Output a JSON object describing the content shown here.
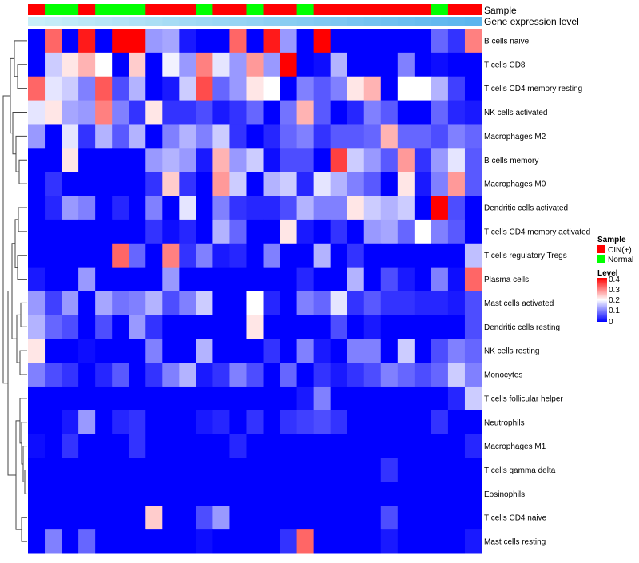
{
  "chart_data": {
    "type": "heatmap",
    "title": "",
    "annotation_labels": {
      "sample": "Sample",
      "expression": "Gene expression level"
    },
    "legend_position": "right",
    "sample_legend": {
      "title": "Sample",
      "entries": [
        {
          "label": "CIN(+)",
          "color": "#FF0000"
        },
        {
          "label": "Normal",
          "color": "#00FF00"
        }
      ]
    },
    "level_legend": {
      "title": "Level",
      "ticks": [
        "0.4",
        "0.3",
        "0.2",
        "0.1",
        "0"
      ],
      "tick_values": [
        0.4,
        0.3,
        0.2,
        0.1,
        0
      ],
      "range": [
        0,
        0.4
      ]
    },
    "color_scale": {
      "low": "#0000FF",
      "mid": "#FFFFFF",
      "high": "#FF0000",
      "midpoint": 0.2
    },
    "expression_bar": {
      "low": "#C8EEF8",
      "high": "#5BB5EE"
    },
    "sample_groups": [
      "CIN(+)",
      "Normal",
      "Normal",
      "CIN(+)",
      "Normal",
      "Normal",
      "Normal",
      "CIN(+)",
      "CIN(+)",
      "CIN(+)",
      "Normal",
      "CIN(+)",
      "CIN(+)",
      "Normal",
      "CIN(+)",
      "CIN(+)",
      "Normal",
      "CIN(+)",
      "CIN(+)",
      "CIN(+)",
      "CIN(+)",
      "CIN(+)",
      "CIN(+)",
      "CIN(+)",
      "Normal",
      "CIN(+)",
      "CIN(+)"
    ],
    "rows": [
      "B cells naive",
      "T cells CD8",
      "T cells CD4 memory resting",
      "NK cells activated",
      "Macrophages M2",
      "B cells memory",
      "Macrophages M0",
      "Dendritic cells activated",
      "T cells CD4 memory activated",
      "T cells regulatory  Tregs",
      "Plasma cells",
      "Mast cells activated",
      "Dendritic cells resting",
      "NK cells resting",
      "Monocytes",
      "T cells follicular helper",
      "Neutrophils",
      "Macrophages M1",
      "T cells gamma delta",
      "Eosinophils",
      "T cells CD4 naive",
      "Mast cells resting"
    ],
    "values": [
      [
        0,
        0.32,
        0,
        0.38,
        0,
        0.4,
        0.4,
        0.12,
        0.13,
        0.02,
        0,
        0,
        0.32,
        0,
        0.38,
        0.12,
        0,
        0.4,
        0,
        0,
        0,
        0,
        0,
        0,
        0.08,
        0.04,
        0.3
      ],
      [
        0,
        0.16,
        0.22,
        0.26,
        0.2,
        0,
        0.24,
        0,
        0.19,
        0.12,
        0.3,
        0.18,
        0.12,
        0.28,
        0.12,
        0.4,
        0,
        0.01,
        0.14,
        0,
        0,
        0,
        0.1,
        0,
        0.01,
        0,
        0
      ],
      [
        0.32,
        0.18,
        0.16,
        0.1,
        0.33,
        0.06,
        0.14,
        0,
        0.02,
        0.16,
        0.34,
        0.08,
        0.12,
        0.22,
        0.2,
        0,
        0.1,
        0.07,
        0.1,
        0.22,
        0.26,
        0,
        0.2,
        0.2,
        0.14,
        0.05,
        0
      ],
      [
        0.18,
        0.22,
        0.13,
        0.12,
        0.3,
        0.1,
        0.04,
        0.22,
        0.04,
        0.04,
        0.06,
        0.02,
        0.04,
        0.08,
        0,
        0.09,
        0.26,
        0.07,
        0,
        0.03,
        0.1,
        0.07,
        0,
        0,
        0.08,
        0.03,
        0.02
      ],
      [
        0.12,
        0,
        0.18,
        0.04,
        0.14,
        0.07,
        0.14,
        0,
        0.1,
        0.14,
        0.1,
        0.16,
        0.04,
        0,
        0.03,
        0.08,
        0.1,
        0.04,
        0.07,
        0.07,
        0.08,
        0.26,
        0.08,
        0.08,
        0.06,
        0.1,
        0.08
      ],
      [
        0,
        0,
        0.22,
        0,
        0,
        0,
        0,
        0.12,
        0.14,
        0.12,
        0.02,
        0.26,
        0.12,
        0.16,
        0.01,
        0.06,
        0.06,
        0,
        0.35,
        0.16,
        0.12,
        0.07,
        0.28,
        0.04,
        0.12,
        0.18,
        0.07
      ],
      [
        0,
        0.04,
        0,
        0,
        0,
        0,
        0,
        0.04,
        0.24,
        0.04,
        0,
        0.28,
        0.16,
        0,
        0.14,
        0.16,
        0.03,
        0.18,
        0.14,
        0.1,
        0.07,
        0,
        0.22,
        0.02,
        0.1,
        0.28,
        0.07
      ],
      [
        0,
        0.03,
        0.12,
        0.1,
        0,
        0.03,
        0,
        0.1,
        0,
        0.18,
        0,
        0.1,
        0.04,
        0.03,
        0.03,
        0.06,
        0.14,
        0.1,
        0.1,
        0.22,
        0.16,
        0.14,
        0.16,
        0,
        0.4,
        0.06,
        0
      ],
      [
        0,
        0,
        0,
        0,
        0,
        0,
        0,
        0.04,
        0.01,
        0.03,
        0,
        0.14,
        0.08,
        0,
        0,
        0.22,
        0.02,
        0,
        0.04,
        0,
        0.12,
        0.13,
        0.08,
        0.2,
        0.1,
        0.07,
        0
      ],
      [
        0,
        0,
        0,
        0,
        0,
        0.32,
        0.08,
        0,
        0.3,
        0.04,
        0.1,
        0.02,
        0.03,
        0,
        0.1,
        0,
        0,
        0.14,
        0,
        0.04,
        0,
        0,
        0,
        0,
        0,
        0,
        0.15
      ],
      [
        0.02,
        0,
        0,
        0.12,
        0,
        0,
        0,
        0,
        0.12,
        0,
        0,
        0,
        0,
        0,
        0,
        0,
        0.03,
        0,
        0,
        0.14,
        0,
        0.06,
        0.02,
        0,
        0.1,
        0.01,
        0.32
      ],
      [
        0.12,
        0.05,
        0.12,
        0,
        0.13,
        0.09,
        0.1,
        0.14,
        0.06,
        0.1,
        0.16,
        0,
        0,
        0.2,
        0.03,
        0,
        0.1,
        0.08,
        0.18,
        0.04,
        0.07,
        0.04,
        0.04,
        0.03,
        0.03,
        0.02,
        0.06
      ],
      [
        0.14,
        0.08,
        0.06,
        0,
        0.06,
        0,
        0.12,
        0.04,
        0,
        0,
        0,
        0,
        0,
        0.22,
        0,
        0,
        0,
        0,
        0.06,
        0,
        0.02,
        0,
        0,
        0,
        0,
        0,
        0.06
      ],
      [
        0.22,
        0,
        0,
        0.01,
        0,
        0,
        0,
        0.1,
        0,
        0,
        0.14,
        0,
        0,
        0,
        0.04,
        0,
        0.1,
        0.02,
        0,
        0.1,
        0.1,
        0,
        0.16,
        0,
        0.06,
        0.1,
        0.08
      ],
      [
        0.1,
        0.06,
        0.04,
        0,
        0.03,
        0.07,
        0,
        0.04,
        0.1,
        0.14,
        0.02,
        0.04,
        0.1,
        0.06,
        0,
        0.08,
        0,
        0.04,
        0.02,
        0.04,
        0.06,
        0.1,
        0.08,
        0.06,
        0.08,
        0.16,
        0.1
      ],
      [
        0,
        0,
        0,
        0,
        0,
        0,
        0,
        0,
        0,
        0,
        0,
        0,
        0,
        0,
        0,
        0,
        0.02,
        0.1,
        0,
        0,
        0,
        0,
        0,
        0,
        0,
        0.03,
        0.16
      ],
      [
        0,
        0,
        0.02,
        0.12,
        0,
        0.03,
        0.04,
        0,
        0,
        0,
        0.02,
        0.03,
        0,
        0.04,
        0,
        0.04,
        0.05,
        0.06,
        0.04,
        0,
        0,
        0,
        0,
        0,
        0.04,
        0,
        0
      ],
      [
        0.01,
        0,
        0.04,
        0,
        0,
        0,
        0.04,
        0,
        0,
        0,
        0,
        0,
        0.03,
        0,
        0,
        0,
        0,
        0,
        0,
        0,
        0,
        0,
        0,
        0,
        0,
        0,
        0.03
      ],
      [
        0,
        0,
        0,
        0,
        0,
        0,
        0,
        0,
        0,
        0,
        0,
        0,
        0,
        0,
        0,
        0,
        0,
        0,
        0,
        0,
        0,
        0.04,
        0,
        0,
        0,
        0,
        0
      ],
      [
        0,
        0,
        0,
        0,
        0,
        0,
        0,
        0,
        0,
        0,
        0,
        0,
        0,
        0,
        0,
        0,
        0,
        0,
        0,
        0,
        0,
        0,
        0,
        0,
        0,
        0,
        0
      ],
      [
        0,
        0,
        0,
        0,
        0,
        0,
        0,
        0.24,
        0,
        0,
        0.06,
        0.12,
        0,
        0,
        0,
        0,
        0,
        0,
        0,
        0,
        0,
        0.06,
        0,
        0,
        0,
        0,
        0
      ],
      [
        0,
        0.1,
        0,
        0.08,
        0,
        0,
        0,
        0,
        0,
        0,
        0.01,
        0,
        0,
        0,
        0,
        0.04,
        0.32,
        0,
        0,
        0,
        0,
        0.02,
        0,
        0,
        0,
        0,
        0.02
      ]
    ]
  }
}
